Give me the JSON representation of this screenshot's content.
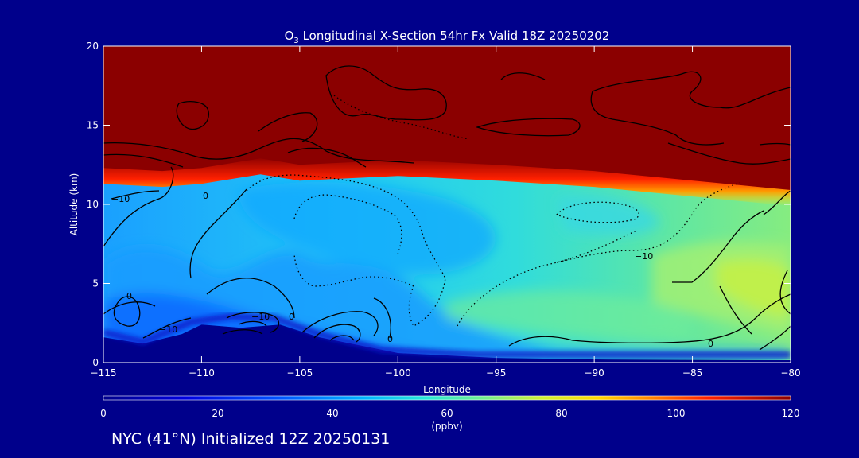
{
  "chart_data": {
    "type": "heatmap",
    "title_prefix": "O",
    "title_subscript": "3",
    "title_rest": " Longitudinal X-Section 54hr  Fx Valid 18Z 20250202",
    "xlabel": "Longitude",
    "ylabel": "Altitude (km)",
    "xlim": [
      -115,
      -80
    ],
    "ylim": [
      0,
      20
    ],
    "xticks": [
      -115,
      -110,
      -105,
      -100,
      -95,
      -90,
      -85,
      -80
    ],
    "xtick_labels": [
      "−115",
      "−110",
      "−105",
      "−100",
      "−95",
      "−90",
      "−85",
      "−80"
    ],
    "yticks": [
      0,
      5,
      10,
      15,
      20
    ],
    "ytick_labels": [
      "0",
      "5",
      "10",
      "15",
      "20"
    ],
    "colorbar": {
      "min": 0,
      "max": 120,
      "ticks": [
        0,
        20,
        40,
        60,
        80,
        100,
        120
      ],
      "tick_labels": [
        "0",
        "20",
        "40",
        "60",
        "80",
        "100",
        "120"
      ],
      "units": "(ppbv)"
    },
    "tropopause_km": [
      [
        -115,
        12.0
      ],
      [
        -112,
        11.8
      ],
      [
        -110,
        12.0
      ],
      [
        -107,
        12.6
      ],
      [
        -105,
        12.2
      ],
      [
        -100,
        12.5
      ],
      [
        -95,
        12.2
      ],
      [
        -90,
        11.8
      ],
      [
        -85,
        11.2
      ],
      [
        -80,
        10.6
      ]
    ],
    "terrain_km": [
      [
        -115,
        1.6
      ],
      [
        -113,
        1.2
      ],
      [
        -111,
        1.8
      ],
      [
        -110,
        2.4
      ],
      [
        -108,
        2.2
      ],
      [
        -106,
        2.4
      ],
      [
        -104,
        1.6
      ],
      [
        -100,
        0.6
      ],
      [
        -95,
        0.3
      ],
      [
        -90,
        0.2
      ],
      [
        -80,
        0.15
      ]
    ],
    "contour_labels": [
      "−10",
      "−10",
      "−10",
      "−10",
      "0",
      "0",
      "0",
      "0",
      "0"
    ]
  },
  "footer": "NYC (41°N) Initialized 12Z 20250131"
}
